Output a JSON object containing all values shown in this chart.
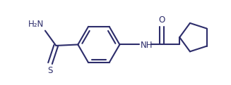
{
  "bg_color": "#ffffff",
  "line_color": "#2d2d6b",
  "line_width": 1.5,
  "figsize": [
    3.27,
    1.21
  ],
  "dpi": 100,
  "xlim": [
    0,
    10.0
  ],
  "ylim": [
    -2.0,
    2.0
  ]
}
